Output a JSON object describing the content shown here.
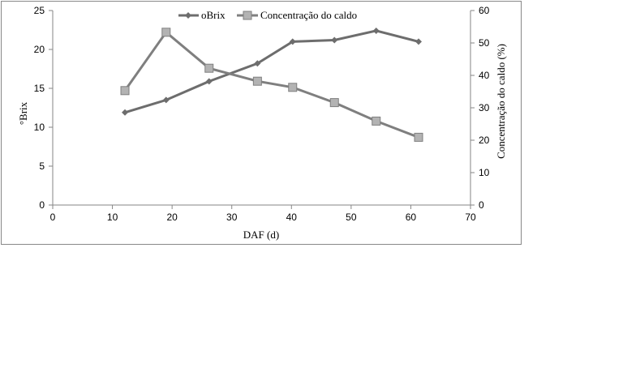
{
  "chart_data": {
    "type": "line",
    "title": "",
    "xlabel": "DAF (d)",
    "ylabel": "°Brix",
    "y2label": "Concentração do caldo (%)",
    "xlim": [
      0,
      70
    ],
    "ylim": [
      0,
      25
    ],
    "y2lim": [
      0,
      60
    ],
    "xticks": [
      "0",
      "10",
      "20",
      "30",
      "40",
      "50",
      "60",
      "70"
    ],
    "yticks": [
      "0",
      "5",
      "10",
      "15",
      "20",
      "25"
    ],
    "y2ticks": [
      "0",
      "10",
      "20",
      "30",
      "40",
      "50",
      "60"
    ],
    "grid": false,
    "legend_position": "top-center",
    "x": [
      12.1,
      19.0,
      26.2,
      34.3,
      40.2,
      47.2,
      54.2,
      61.3
    ],
    "series": [
      {
        "name": "oBrix",
        "axis": "left",
        "marker": "diamond",
        "color": "#6d6d6d",
        "values": [
          11.9,
          13.5,
          15.9,
          18.2,
          21.0,
          21.2,
          22.4,
          21.0
        ]
      },
      {
        "name": "Concentração do caldo",
        "axis": "right",
        "marker": "square",
        "color": "#7f7f7f",
        "marker_fill": "#b3b3b3",
        "values": [
          35.3,
          53.3,
          42.2,
          38.2,
          36.3,
          31.6,
          25.9,
          20.9
        ]
      }
    ]
  }
}
